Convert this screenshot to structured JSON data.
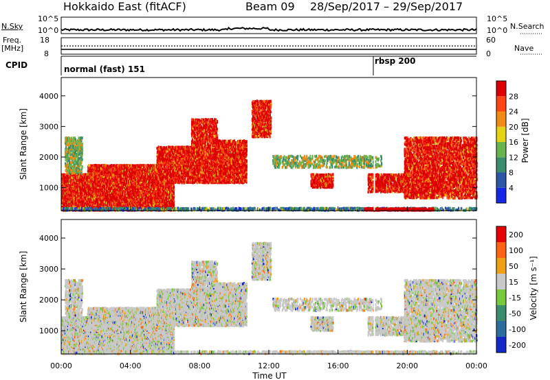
{
  "header": {
    "station": "Hokkaido East (fitACF)",
    "beam": "Beam 09",
    "date_range": "28/Sep/2017 – 29/Sep/2017"
  },
  "noise_panel": {
    "left_label": "N.Sky",
    "right_label": "N.Search",
    "left_ticks": [
      "10^5",
      "10^0"
    ],
    "right_ticks": [
      "10^5",
      "10^0"
    ]
  },
  "freq_panel": {
    "left_label_line1": "Freq.",
    "left_label_line2": "[MHz]",
    "left_ticks": [
      "18",
      "8"
    ],
    "right_ticks": [
      "60",
      "0"
    ],
    "right_label": "Nave"
  },
  "cpid_panel": {
    "label": "CPID",
    "programs": [
      "normal (fast) 151",
      "rbsp 200"
    ]
  },
  "chart_data": [
    {
      "type": "heatmap",
      "name": "power",
      "ylabel": "Slant Range [km]",
      "y_ticks": [
        "1000",
        "2000",
        "3000",
        "4000"
      ],
      "ylim": [
        250,
        4600
      ],
      "colorbar_label": "Power [dB]",
      "colorbar_ticks": [
        "4",
        "8",
        "12",
        "16",
        "20",
        "24",
        "28"
      ],
      "colorbar_colors": [
        "#1428e6",
        "#2c56a8",
        "#3c8c6e",
        "#6ab450",
        "#e6d214",
        "#f08c14",
        "#ff4614",
        "#dc0000"
      ]
    },
    {
      "type": "heatmap",
      "name": "velocity",
      "ylabel": "Slant Range [km]",
      "y_ticks": [
        "1000",
        "2000",
        "3000",
        "4000"
      ],
      "ylim": [
        250,
        4600
      ],
      "colorbar_label": "Velocity [m s⁻¹]",
      "colorbar_ticks": [
        "200",
        "100",
        "50",
        "15",
        "-15",
        "-50",
        "-100",
        "-200"
      ],
      "colorbar_colors": [
        "#1428c8",
        "#2c6ea0",
        "#3c8c6e",
        "#78c83c",
        "#c8c8c8",
        "#f0a014",
        "#ff6414",
        "#e60000"
      ]
    }
  ],
  "x_axis": {
    "ticks": [
      "00:00",
      "04:00",
      "08:00",
      "12:00",
      "16:00",
      "20:00",
      "00:00"
    ],
    "label": "Time UT",
    "range_hours": [
      0,
      24
    ]
  }
}
